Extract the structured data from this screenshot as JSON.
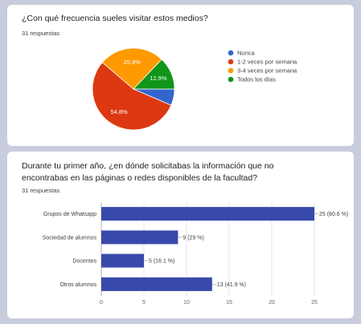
{
  "chart_data": [
    {
      "type": "pie",
      "title": "¿Con qué frecuencia sueles visitar estos medios?",
      "subtitle": "31 respuestas",
      "categories": [
        "Nunca",
        "1-2 veces por semana",
        "3-4 veces por semana",
        "Todos los días"
      ],
      "values": [
        6.5,
        54.8,
        25.8,
        12.9
      ],
      "labels": [
        "",
        "54.8%",
        "25.8%",
        "12.9%"
      ],
      "colors": [
        "#3366cc",
        "#dc3912",
        "#ff9900",
        "#109618"
      ],
      "legend_position": "right"
    },
    {
      "type": "bar",
      "orientation": "horizontal",
      "title": "Durante tu primer año, ¿en dónde solicitabas la información que no encontrabas en las páginas o redes disponibles de la facultad?",
      "subtitle": "31 respuestas",
      "categories": [
        "Grupos de Whatsapp",
        "Sociedad de alumnos",
        "Docentes",
        "Otros alumnos"
      ],
      "values": [
        25,
        9,
        5,
        13
      ],
      "labels": [
        "25 (80.6 %)",
        "9 (29 %)",
        "5 (16.1 %)",
        "13 (41.9 %)"
      ],
      "color": "#3949ab",
      "xlim": [
        0,
        25
      ],
      "xticks": [
        "0",
        "5",
        "10",
        "15",
        "20",
        "25"
      ],
      "grid": true
    }
  ]
}
